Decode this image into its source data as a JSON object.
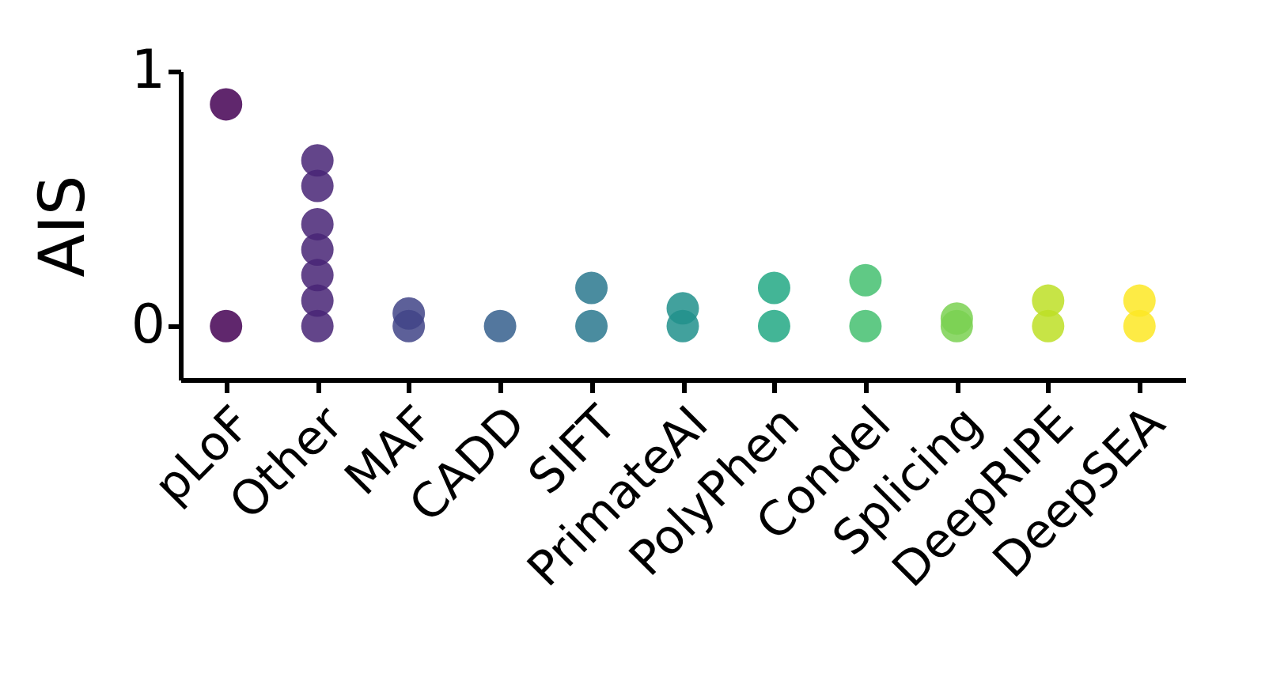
{
  "chart_data": {
    "type": "scatter",
    "ylabel": "AIS",
    "categories": [
      "pLoF",
      "Other",
      "MAF",
      "CADD",
      "SIFT",
      "PrimateAI",
      "PolyPhen",
      "Condel",
      "Splicing",
      "DeepRIPE",
      "DeepSEA"
    ],
    "series": [
      {
        "color": "#440154",
        "x": [
          "pLoF",
          "pLoF"
        ],
        "values": [
          0,
          0.87
        ]
      },
      {
        "color": "#482475",
        "x": [
          "Other",
          "Other",
          "Other",
          "Other",
          "Other",
          "Other",
          "Other"
        ],
        "values": [
          0,
          0.1,
          0.2,
          0.3,
          0.4,
          0.55,
          0.65
        ]
      },
      {
        "color": "#414487",
        "x": [
          "MAF",
          "MAF"
        ],
        "values": [
          0,
          0.05
        ]
      },
      {
        "color": "#355f8d",
        "x": [
          "CADD"
        ],
        "values": [
          0
        ]
      },
      {
        "color": "#2a788e",
        "x": [
          "SIFT",
          "SIFT"
        ],
        "values": [
          0,
          0.15
        ]
      },
      {
        "color": "#21918c",
        "x": [
          "PrimateAI",
          "PrimateAI"
        ],
        "values": [
          0,
          0.07
        ]
      },
      {
        "color": "#22a884",
        "x": [
          "PolyPhen",
          "PolyPhen"
        ],
        "values": [
          0,
          0.15
        ]
      },
      {
        "color": "#44bf70",
        "x": [
          "Condel",
          "Condel"
        ],
        "values": [
          0,
          0.18
        ]
      },
      {
        "color": "#7ad151",
        "x": [
          "Splicing",
          "Splicing"
        ],
        "values": [
          0,
          0.03
        ]
      },
      {
        "color": "#bddf26",
        "x": [
          "DeepRIPE",
          "DeepRIPE"
        ],
        "values": [
          0,
          0.1
        ]
      },
      {
        "color": "#fde725",
        "x": [
          "DeepSEA",
          "DeepSEA"
        ],
        "values": [
          0,
          0.1
        ]
      }
    ],
    "ylim": [
      -0.21,
      1.0
    ],
    "yticks": [
      0,
      1
    ],
    "grid": false,
    "legend": false,
    "marker": "circle"
  }
}
